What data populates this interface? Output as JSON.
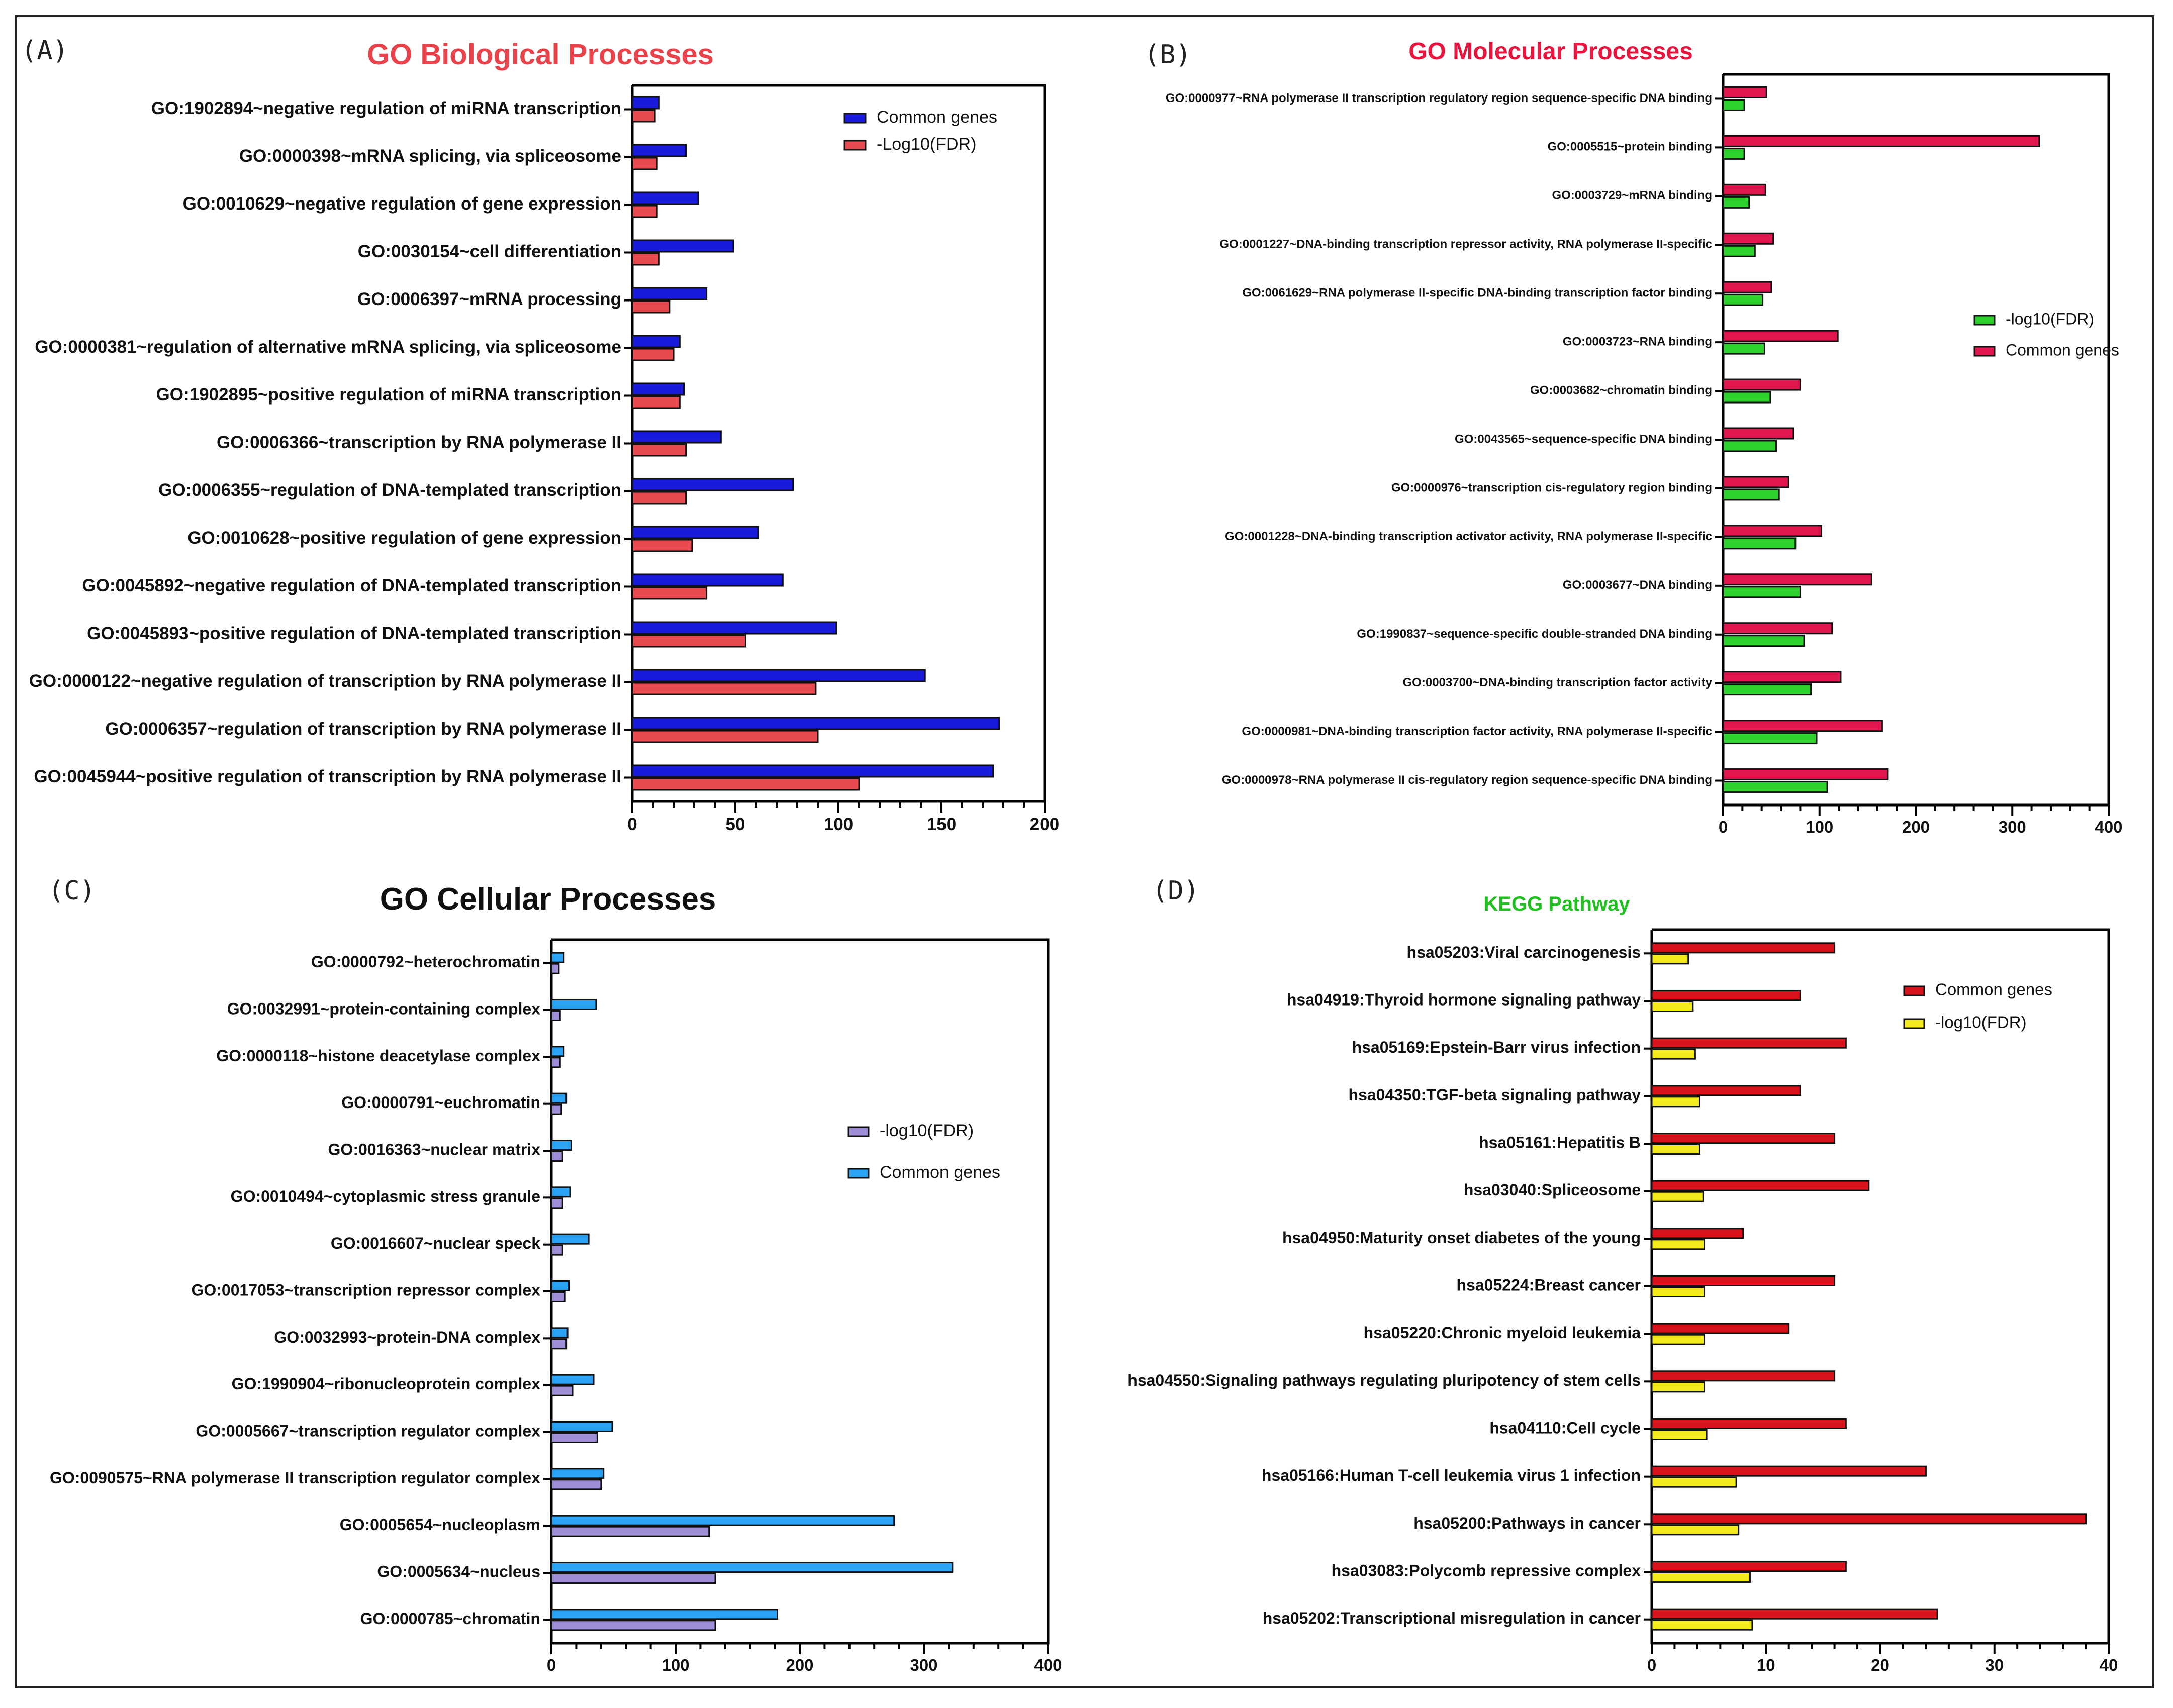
{
  "chart_data": [
    {
      "panel": "(A)",
      "type": "bar",
      "orientation": "horizontal",
      "title": "GO Biological Processes",
      "title_color": "#e8434a",
      "categories": [
        "GO:1902894~negative regulation of miRNA transcription",
        "GO:0000398~mRNA splicing, via spliceosome",
        "GO:0010629~negative regulation of gene expression",
        "GO:0030154~cell differentiation",
        "GO:0006397~mRNA processing",
        "GO:0000381~regulation of alternative mRNA splicing, via spliceosome",
        "GO:1902895~positive regulation of miRNA transcription",
        "GO:0006366~transcription by RNA polymerase II",
        "GO:0006355~regulation of DNA-templated transcription",
        "GO:0010628~positive regulation of gene expression",
        "GO:0045892~negative regulation of DNA-templated transcription",
        "GO:0045893~positive regulation of DNA-templated transcription",
        "GO:0000122~negative regulation of transcription by RNA polymerase II",
        "GO:0006357~regulation of transcription by RNA polymerase II",
        "GO:0045944~positive regulation of transcription by RNA polymerase II"
      ],
      "series": [
        {
          "name": "Common genes",
          "color": "#1a1adb",
          "values": [
            13,
            26,
            32,
            49,
            36,
            23,
            25,
            43,
            78,
            61,
            73,
            99,
            142,
            178,
            175
          ]
        },
        {
          "name": "-Log10(FDR)",
          "color": "#e84b4f",
          "values": [
            11,
            12,
            12,
            13,
            18,
            20,
            23,
            26,
            26,
            29,
            36,
            55,
            89,
            90,
            110
          ]
        }
      ],
      "xlim": [
        0,
        200
      ],
      "xticks": [
        "0",
        "50",
        "100",
        "150",
        "200"
      ],
      "legend_position": "top-right"
    },
    {
      "panel": "(B)",
      "type": "bar",
      "orientation": "horizontal",
      "title": "GO Molecular Processes",
      "title_color": "#e8163f",
      "categories": [
        "GO:0000977~RNA polymerase II transcription regulatory region sequence-specific DNA binding",
        "GO:0005515~protein binding",
        "GO:0003729~mRNA binding",
        "GO:0001227~DNA-binding transcription repressor activity, RNA polymerase II-specific",
        "GO:0061629~RNA polymerase II-specific DNA-binding transcription factor binding",
        "GO:0003723~RNA binding",
        "GO:0003682~chromatin binding",
        "GO:0043565~sequence-specific DNA binding",
        "GO:0000976~transcription cis-regulatory region binding",
        "GO:0001228~DNA-binding transcription activator activity, RNA polymerase II-specific",
        "GO:0003677~DNA binding",
        "GO:1990837~sequence-specific double-stranded DNA binding",
        "GO:0003700~DNA-binding transcription factor activity",
        "GO:0000981~DNA-binding transcription factor activity, RNA polymerase II-specific",
        "GO:0000978~RNA polymerase II cis-regulatory region sequence-specific DNA binding"
      ],
      "series": [
        {
          "name": "Common genes",
          "color": "#e0164f",
          "values": [
            45,
            328,
            44,
            52,
            50,
            119,
            80,
            73,
            68,
            102,
            154,
            113,
            122,
            165,
            171
          ]
        },
        {
          "name": "-log10(FDR)",
          "color": "#2fd12f",
          "values": [
            22,
            22,
            27,
            33,
            41,
            43,
            49,
            55,
            58,
            75,
            80,
            84,
            91,
            97,
            108
          ]
        }
      ],
      "xlim": [
        0,
        400
      ],
      "xticks": [
        "0",
        "100",
        "200",
        "300",
        "400"
      ],
      "legend_order": [
        "-log10(FDR)",
        "Common genes"
      ],
      "legend_position": "right"
    },
    {
      "panel": "(C)",
      "type": "bar",
      "orientation": "horizontal",
      "title": "GO Cellular Processes",
      "title_color": "#111111",
      "categories": [
        "GO:0000792~heterochromatin",
        "GO:0032991~protein-containing complex",
        "GO:0000118~histone deacetylase complex",
        "GO:0000791~euchromatin",
        "GO:0016363~nuclear matrix",
        "GO:0010494~cytoplasmic stress granule",
        "GO:0016607~nuclear speck",
        "GO:0017053~transcription repressor complex",
        "GO:0032993~protein-DNA complex",
        "GO:1990904~ribonucleoprotein complex",
        "GO:0005667~transcription regulator complex",
        "GO:0090575~RNA polymerase II transcription regulator complex",
        "GO:0005654~nucleoplasm",
        "GO:0005634~nucleus",
        "GO:0000785~chromatin"
      ],
      "series": [
        {
          "name": "Common genes",
          "color": "#2aa3f5",
          "values": [
            10,
            36,
            10,
            12,
            16,
            15,
            30,
            14,
            13,
            34,
            49,
            42,
            276,
            323,
            182
          ]
        },
        {
          "name": "-log10(FDR)",
          "color": "#a08fd6",
          "values": [
            6,
            7,
            7,
            8,
            9,
            9,
            9,
            11,
            12,
            17,
            37,
            40,
            127,
            132,
            132
          ]
        }
      ],
      "xlim": [
        0,
        400
      ],
      "xticks": [
        "0",
        "100",
        "200",
        "300",
        "400"
      ],
      "legend_order": [
        "-log10(FDR)",
        "Common genes"
      ],
      "legend_position": "right"
    },
    {
      "panel": "(D)",
      "type": "bar",
      "orientation": "horizontal",
      "title": "KEGG Pathway",
      "title_color": "#1fbf1f",
      "categories": [
        "hsa05203:Viral carcinogenesis",
        "hsa04919:Thyroid hormone signaling pathway",
        "hsa05169:Epstein-Barr virus infection",
        "hsa04350:TGF-beta signaling pathway",
        "hsa05161:Hepatitis B",
        "hsa03040:Spliceosome",
        "hsa04950:Maturity onset diabetes of the young",
        "hsa05224:Breast cancer",
        "hsa05220:Chronic myeloid leukemia",
        "hsa04550:Signaling pathways regulating pluripotency of stem cells",
        "hsa04110:Cell cycle",
        "hsa05166:Human T-cell leukemia virus 1 infection",
        "hsa05200:Pathways in cancer",
        "hsa03083:Polycomb repressive complex",
        "hsa05202:Transcriptional misregulation in cancer"
      ],
      "series": [
        {
          "name": "Common genes",
          "color": "#d9131b",
          "values": [
            16,
            13,
            17,
            13,
            16,
            19,
            8,
            16,
            12,
            16,
            17,
            24,
            38,
            17,
            25
          ]
        },
        {
          "name": "-log10(FDR)",
          "color": "#f2ea1a",
          "values": [
            3.2,
            3.6,
            3.8,
            4.2,
            4.2,
            4.5,
            4.6,
            4.6,
            4.6,
            4.6,
            4.8,
            7.4,
            7.6,
            8.6,
            8.8
          ]
        }
      ],
      "xlim": [
        0,
        40
      ],
      "xticks": [
        "0",
        "10",
        "20",
        "30",
        "40"
      ],
      "legend_position": "top-right"
    }
  ]
}
